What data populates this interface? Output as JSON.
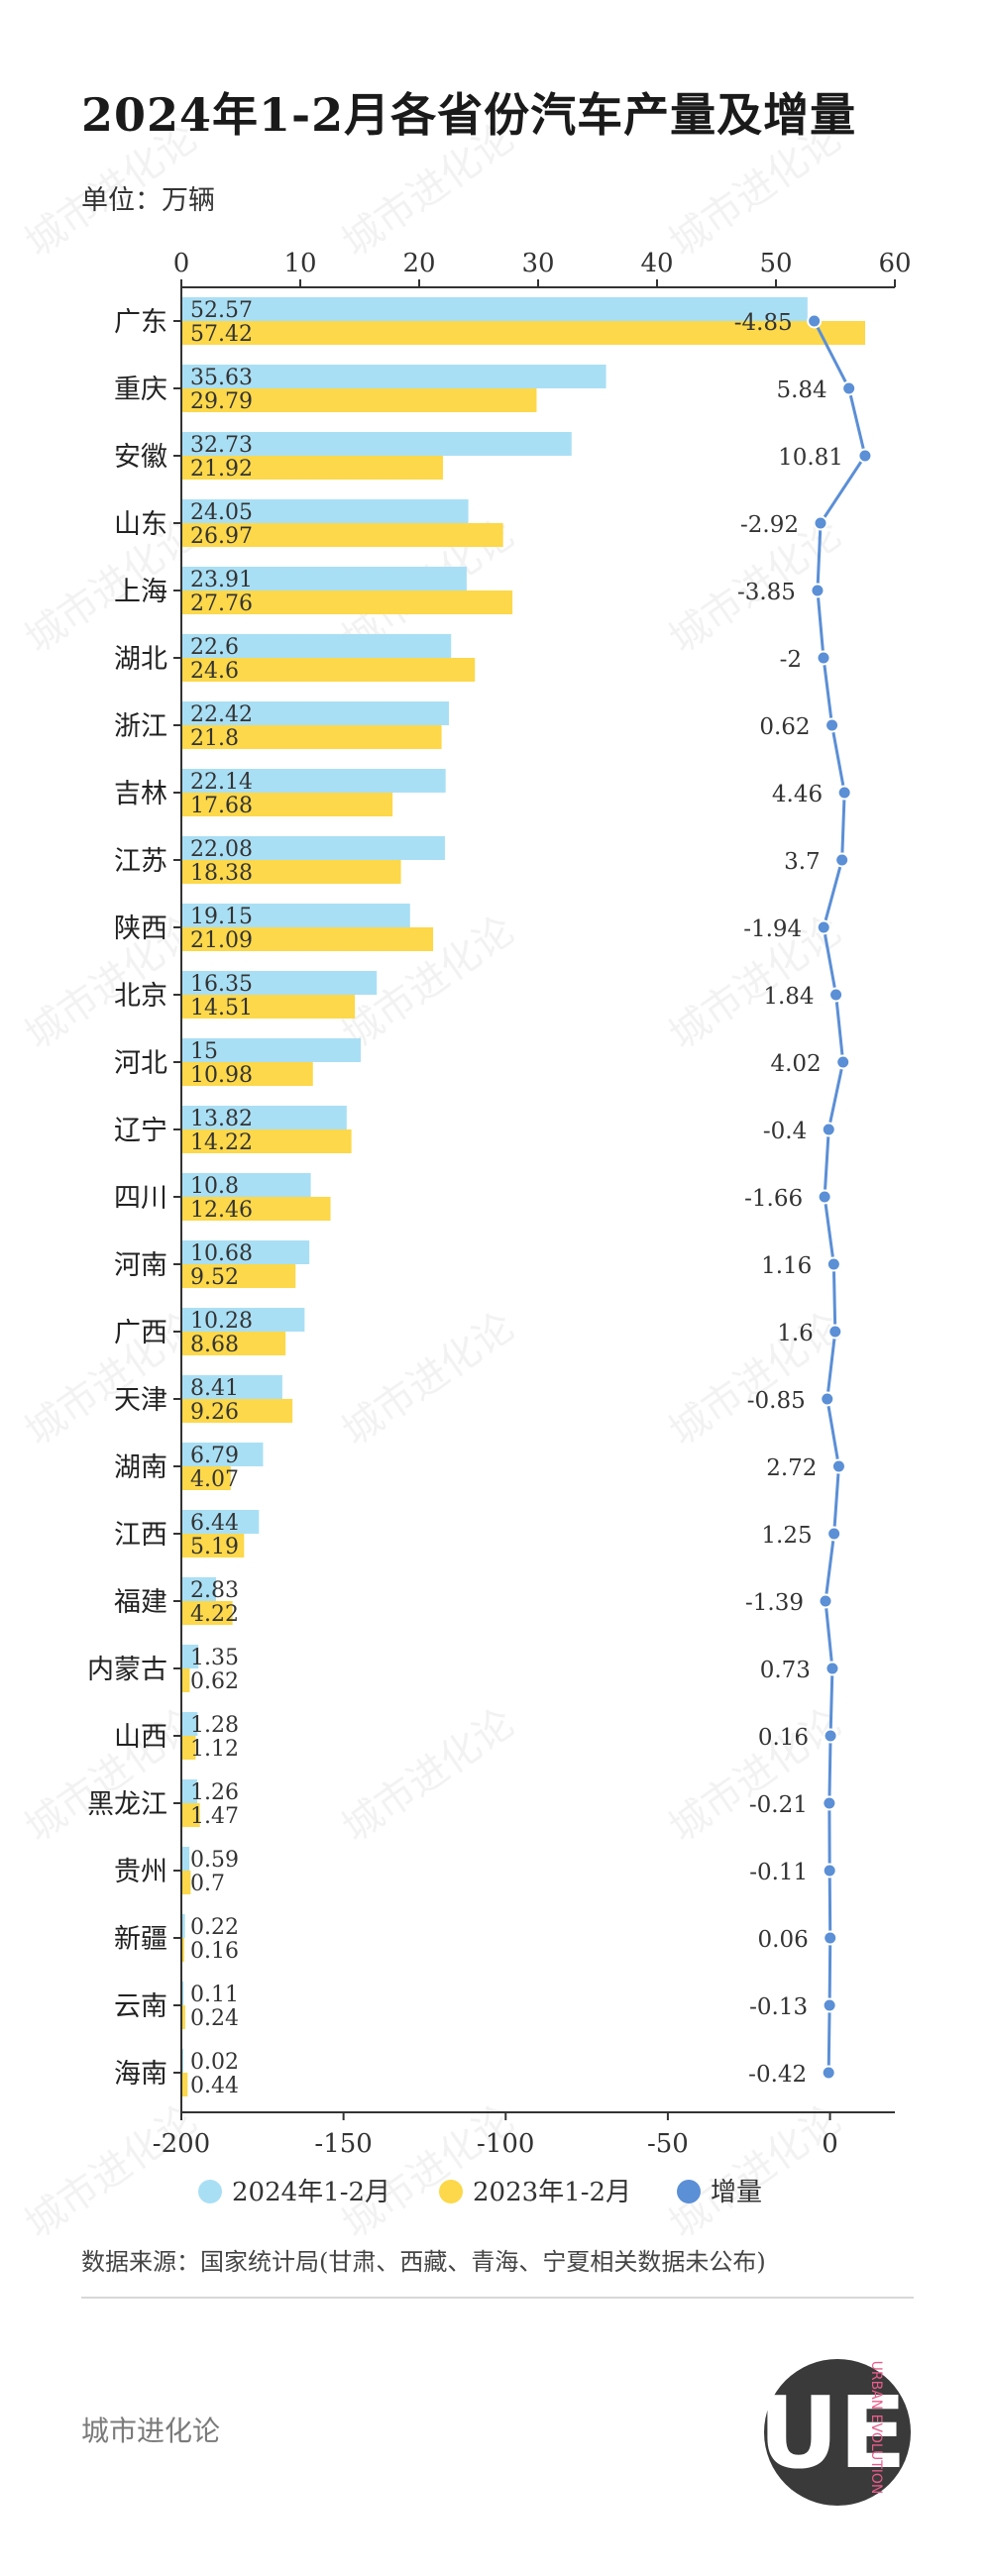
{
  "title": "2024年1-2月各省份汽车产量及增量",
  "unit": "单位：万辆",
  "source": "数据来源：国家统计局(甘肃、西藏、青海、宁夏相关数据未公布)",
  "footer": "城市进化论",
  "logo": {
    "text": "UE",
    "ring": "URBAN EVOLUTION"
  },
  "watermark": {
    "text": "城市进化论"
  },
  "colors": {
    "series2024": "#a9dff5",
    "series2023": "#fcd84a",
    "increment": "#5b8fd6"
  },
  "chart_data": {
    "type": "bar",
    "orientation": "horizontal",
    "categories": [
      "广东",
      "重庆",
      "安徽",
      "山东",
      "上海",
      "湖北",
      "浙江",
      "吉林",
      "江苏",
      "陕西",
      "北京",
      "河北",
      "辽宁",
      "四川",
      "河南",
      "广西",
      "天津",
      "湖南",
      "江西",
      "福建",
      "内蒙古",
      "山西",
      "黑龙江",
      "贵州",
      "新疆",
      "云南",
      "海南"
    ],
    "series": [
      {
        "name": "2024年1-2月",
        "values": [
          52.57,
          35.63,
          32.73,
          24.05,
          23.91,
          22.6,
          22.42,
          22.14,
          22.08,
          19.15,
          16.35,
          15,
          13.82,
          10.8,
          10.68,
          10.28,
          8.41,
          6.79,
          6.44,
          2.83,
          1.35,
          1.28,
          1.26,
          0.59,
          0.22,
          0.11,
          0.02
        ]
      },
      {
        "name": "2023年1-2月",
        "values": [
          57.42,
          29.79,
          21.92,
          26.97,
          27.76,
          24.6,
          21.8,
          17.68,
          18.38,
          21.09,
          14.51,
          10.98,
          14.22,
          12.46,
          9.52,
          8.68,
          9.26,
          4.07,
          5.19,
          4.22,
          0.62,
          1.12,
          1.47,
          0.7,
          0.16,
          0.24,
          0.44
        ]
      },
      {
        "name": "增量",
        "type": "line",
        "values": [
          -4.85,
          5.84,
          10.81,
          -2.92,
          -3.85,
          -2,
          0.62,
          4.46,
          3.7,
          -1.94,
          1.84,
          4.02,
          -0.4,
          -1.66,
          1.16,
          1.6,
          -0.85,
          2.72,
          1.25,
          -1.39,
          0.73,
          0.16,
          -0.21,
          -0.11,
          0.06,
          -0.13,
          -0.42
        ]
      }
    ],
    "top_axis": {
      "range": [
        0,
        60
      ],
      "ticks": [
        0,
        10,
        20,
        30,
        40,
        50,
        60
      ]
    },
    "bottom_axis": {
      "range": [
        -200,
        20
      ],
      "ticks": [
        -200,
        -150,
        -100,
        -50,
        0
      ]
    },
    "legend": {
      "position": "bottom",
      "items": [
        "2024年1-2月",
        "2023年1-2月",
        "增量"
      ]
    }
  }
}
